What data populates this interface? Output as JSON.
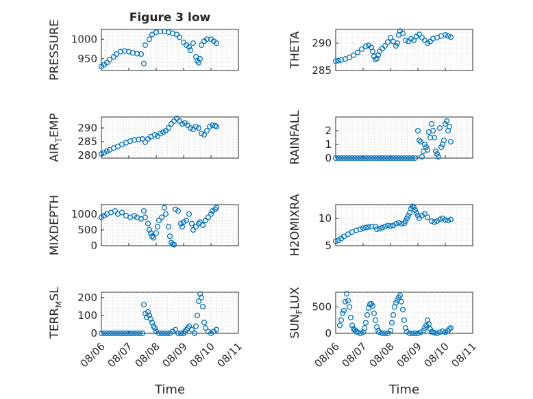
{
  "chart_data": [
    {
      "type": "scatter",
      "panel": "top-left",
      "title": "Figure 3 low",
      "ylabel": "PRESSURE",
      "xlim": [
        "2009-08-06",
        "2009-08-11"
      ],
      "ylim": [
        920,
        1025
      ],
      "yticks": [
        950,
        1000
      ],
      "grid": true,
      "minor_grid": true,
      "series": [
        {
          "x": [
            6.0,
            6.1,
            6.2,
            6.3,
            6.45,
            6.55,
            6.7,
            6.85,
            7.0,
            7.15,
            7.3,
            7.45,
            7.55,
            7.6,
            7.75,
            7.85,
            8.0,
            8.15,
            8.3,
            8.45,
            8.6,
            8.75,
            8.85,
            9.0,
            9.1,
            9.2,
            9.25,
            9.35,
            9.45,
            9.5,
            9.55,
            9.6,
            9.65,
            9.75,
            9.85,
            10.0,
            10.1,
            10.2
          ],
          "y": [
            930,
            935,
            940,
            948,
            955,
            962,
            968,
            970,
            968,
            965,
            963,
            962,
            938,
            985,
            1000,
            1012,
            1018,
            1020,
            1020,
            1018,
            1015,
            1012,
            1005,
            992,
            985,
            980,
            972,
            990,
            955,
            945,
            940,
            950,
            985,
            995,
            1000,
            1000,
            995,
            990
          ]
        }
      ]
    },
    {
      "type": "scatter",
      "panel": "top-right",
      "ylabel": "THETA",
      "xlim": [
        "2009-08-06",
        "2009-08-11"
      ],
      "ylim": [
        285,
        292.5
      ],
      "yticks": [
        285,
        290
      ],
      "grid": true,
      "minor_grid": true,
      "series": [
        {
          "x": [
            6.0,
            6.1,
            6.2,
            6.35,
            6.5,
            6.65,
            6.8,
            6.95,
            7.1,
            7.2,
            7.3,
            7.35,
            7.4,
            7.45,
            7.5,
            7.55,
            7.6,
            7.7,
            7.8,
            7.9,
            8.0,
            8.1,
            8.2,
            8.25,
            8.3,
            8.35,
            8.45,
            8.55,
            8.65,
            8.75,
            8.85,
            8.95,
            9.05,
            9.15,
            9.25,
            9.35,
            9.45,
            9.55,
            9.7,
            9.85,
            10.0,
            10.1,
            10.2
          ],
          "y": [
            286.7,
            286.8,
            286.9,
            287.1,
            287.4,
            287.8,
            288.3,
            288.9,
            289.4,
            289.6,
            289.2,
            288.5,
            287.6,
            287.0,
            287.2,
            287.8,
            288.5,
            289.0,
            289.5,
            290.2,
            291.0,
            290.3,
            289.5,
            290.0,
            291.5,
            292.2,
            291.8,
            290.5,
            290.3,
            290.8,
            290.5,
            291.2,
            291.6,
            291.0,
            290.5,
            290.0,
            290.3,
            290.8,
            291.0,
            291.3,
            291.5,
            291.3,
            291.1
          ]
        }
      ]
    },
    {
      "type": "scatter",
      "panel": "row2-left",
      "ylabel": "AIR_TEMP",
      "xlim": [
        "2009-08-06",
        "2009-08-11"
      ],
      "ylim": [
        279,
        294
      ],
      "yticks": [
        280,
        285,
        290
      ],
      "grid": true,
      "minor_grid": true,
      "series": [
        {
          "x": [
            6.0,
            6.1,
            6.2,
            6.3,
            6.45,
            6.6,
            6.75,
            6.9,
            7.05,
            7.2,
            7.35,
            7.5,
            7.6,
            7.7,
            7.8,
            7.95,
            8.05,
            8.15,
            8.25,
            8.35,
            8.45,
            8.55,
            8.65,
            8.75,
            8.85,
            8.95,
            9.05,
            9.15,
            9.25,
            9.35,
            9.45,
            9.55,
            9.65,
            9.75,
            9.85,
            9.95,
            10.05,
            10.15,
            10.2
          ],
          "y": [
            280.5,
            281.0,
            281.5,
            282.0,
            282.7,
            283.3,
            284.0,
            284.6,
            285.2,
            285.6,
            285.8,
            286.0,
            284.8,
            286.0,
            286.8,
            287.5,
            287.0,
            288.0,
            288.5,
            289.0,
            290.0,
            291.5,
            292.5,
            293.5,
            292.5,
            291.5,
            291.8,
            291.0,
            290.0,
            289.5,
            290.5,
            290.0,
            288.0,
            287.5,
            289.0,
            290.5,
            291.0,
            290.8,
            290.5
          ]
        }
      ]
    },
    {
      "type": "scatter",
      "panel": "row2-right",
      "ylabel": "RAINFALL",
      "xlim": [
        "2009-08-06",
        "2009-08-11"
      ],
      "ylim": [
        0,
        3
      ],
      "yticks": [
        0,
        1,
        2
      ],
      "grid": true,
      "minor_grid": true,
      "series": [
        {
          "x": [
            6.0,
            6.1,
            6.2,
            6.3,
            6.4,
            6.5,
            6.6,
            6.7,
            6.8,
            6.9,
            7.0,
            7.1,
            7.2,
            7.3,
            7.4,
            7.5,
            7.6,
            7.7,
            7.8,
            7.9,
            8.0,
            8.1,
            8.2,
            8.3,
            8.4,
            8.5,
            8.6,
            8.7,
            8.8,
            8.9,
            9.0,
            9.05,
            9.1,
            9.15,
            9.2,
            9.25,
            9.3,
            9.35,
            9.4,
            9.45,
            9.5,
            9.55,
            9.6,
            9.65,
            9.7,
            9.75,
            9.8,
            9.85,
            9.9,
            9.95,
            10.0,
            10.05,
            10.1,
            10.15,
            10.2
          ],
          "y": [
            0,
            0,
            0,
            0,
            0,
            0,
            0,
            0,
            0,
            0,
            0,
            0,
            0,
            0,
            0,
            0,
            0,
            0,
            0,
            0,
            0,
            0,
            0,
            0,
            0,
            0,
            0,
            0,
            0,
            0,
            2.0,
            1.3,
            1.2,
            0.1,
            0.5,
            1.0,
            0.8,
            0.6,
            1.9,
            1.5,
            2.5,
            2.0,
            1.5,
            0.5,
            0.3,
            0.1,
            2.2,
            0.8,
            1.0,
            1.3,
            2.5,
            2.7,
            2.0,
            2.3,
            1.2
          ]
        }
      ]
    },
    {
      "type": "scatter",
      "panel": "row3-left",
      "ylabel": "MIXDEPTH",
      "xlim": [
        "2009-08-06",
        "2009-08-11"
      ],
      "ylim": [
        0,
        1300
      ],
      "yticks": [
        0,
        500,
        1000
      ],
      "grid": true,
      "minor_grid": true,
      "series": [
        {
          "x": [
            6.0,
            6.1,
            6.2,
            6.35,
            6.5,
            6.6,
            6.75,
            6.9,
            7.05,
            7.2,
            7.3,
            7.45,
            7.55,
            7.6,
            7.7,
            7.75,
            7.8,
            7.85,
            7.9,
            8.0,
            8.05,
            8.1,
            8.2,
            8.3,
            8.35,
            8.45,
            8.5,
            8.55,
            8.6,
            8.65,
            8.7,
            8.8,
            8.9,
            8.95,
            9.0,
            9.1,
            9.2,
            9.3,
            9.35,
            9.45,
            9.55,
            9.6,
            9.7,
            9.8,
            9.9,
            10.0,
            10.05,
            10.15,
            10.2
          ],
          "y": [
            900,
            950,
            1000,
            1050,
            1100,
            1000,
            1050,
            950,
            900,
            950,
            900,
            850,
            1100,
            900,
            700,
            500,
            400,
            300,
            250,
            400,
            600,
            800,
            900,
            1200,
            1000,
            600,
            300,
            100,
            50,
            30,
            1150,
            1100,
            700,
            600,
            750,
            800,
            1000,
            700,
            500,
            600,
            700,
            750,
            650,
            800,
            900,
            1000,
            1100,
            1150,
            1200
          ]
        }
      ]
    },
    {
      "type": "scatter",
      "panel": "row3-right",
      "ylabel": "H2OMIXRA",
      "xlim": [
        "2009-08-06",
        "2009-08-11"
      ],
      "ylim": [
        5,
        12.5
      ],
      "yticks": [
        5,
        10
      ],
      "grid": true,
      "minor_grid": true,
      "series": [
        {
          "x": [
            6.0,
            6.1,
            6.2,
            6.3,
            6.45,
            6.6,
            6.75,
            6.9,
            7.0,
            7.1,
            7.2,
            7.3,
            7.45,
            7.5,
            7.6,
            7.7,
            7.8,
            7.9,
            8.0,
            8.1,
            8.2,
            8.3,
            8.4,
            8.5,
            8.55,
            8.6,
            8.65,
            8.7,
            8.75,
            8.8,
            8.85,
            8.9,
            8.95,
            9.0,
            9.05,
            9.15,
            9.25,
            9.35,
            9.5,
            9.6,
            9.7,
            9.8,
            9.9,
            10.0,
            10.1,
            10.2
          ],
          "y": [
            5.8,
            6.0,
            6.3,
            6.7,
            7.1,
            7.5,
            7.8,
            8.0,
            8.2,
            8.3,
            8.4,
            8.5,
            8.5,
            8.0,
            8.1,
            8.3,
            8.5,
            8.7,
            8.6,
            8.7,
            9.0,
            9.2,
            9.0,
            9.1,
            9.5,
            10.0,
            10.5,
            11.0,
            11.8,
            12.2,
            12.0,
            11.5,
            11.0,
            10.5,
            10.0,
            10.5,
            10.8,
            10.2,
            9.5,
            9.3,
            9.5,
            9.8,
            10.0,
            9.7,
            9.6,
            9.8
          ]
        }
      ]
    },
    {
      "type": "scatter",
      "panel": "bottom-left",
      "ylabel": "TERR_MSL",
      "xlabel": "Time",
      "xlim": [
        "2009-08-06",
        "2009-08-11"
      ],
      "xticks": [
        "08/06",
        "08/07",
        "08/08",
        "08/09",
        "08/10",
        "08/11"
      ],
      "ylim": [
        0,
        230
      ],
      "yticks": [
        0,
        100,
        200
      ],
      "grid": true,
      "minor_grid": true,
      "series": [
        {
          "x": [
            6.0,
            6.1,
            6.2,
            6.3,
            6.4,
            6.5,
            6.6,
            6.7,
            6.8,
            6.9,
            7.0,
            7.1,
            7.2,
            7.3,
            7.4,
            7.5,
            7.55,
            7.6,
            7.65,
            7.7,
            7.75,
            7.8,
            7.85,
            7.9,
            7.95,
            8.0,
            8.1,
            8.2,
            8.3,
            8.4,
            8.5,
            8.6,
            8.7,
            8.8,
            8.9,
            9.0,
            9.05,
            9.1,
            9.15,
            9.2,
            9.3,
            9.4,
            9.45,
            9.5,
            9.55,
            9.6,
            9.65,
            9.7,
            9.75,
            9.8,
            9.9,
            10.0,
            10.1,
            10.2
          ],
          "y": [
            0,
            0,
            0,
            0,
            0,
            0,
            0,
            0,
            0,
            0,
            0,
            0,
            0,
            0,
            0,
            0,
            160,
            110,
            90,
            120,
            100,
            80,
            60,
            40,
            30,
            10,
            0,
            0,
            0,
            0,
            0,
            10,
            20,
            0,
            0,
            0,
            10,
            20,
            30,
            40,
            20,
            0,
            40,
            100,
            180,
            220,
            200,
            150,
            60,
            30,
            10,
            0,
            10,
            20
          ]
        }
      ]
    },
    {
      "type": "scatter",
      "panel": "bottom-right",
      "ylabel": "SUN_FLUX",
      "xlabel": "Time",
      "xlim": [
        "2009-08-06",
        "2009-08-11"
      ],
      "xticks": [
        "08/06",
        "08/07",
        "08/08",
        "08/09",
        "08/10",
        "08/11"
      ],
      "ylim": [
        0,
        780
      ],
      "yticks": [
        0,
        500
      ],
      "grid": true,
      "minor_grid": true,
      "series": [
        {
          "x": [
            6.15,
            6.2,
            6.25,
            6.3,
            6.35,
            6.4,
            6.45,
            6.5,
            6.55,
            6.6,
            6.65,
            6.7,
            6.75,
            6.8,
            6.9,
            7.0,
            7.05,
            7.1,
            7.15,
            7.2,
            7.25,
            7.3,
            7.35,
            7.4,
            7.45,
            7.5,
            7.55,
            7.6,
            7.7,
            7.8,
            7.9,
            8.0,
            8.05,
            8.1,
            8.15,
            8.2,
            8.25,
            8.3,
            8.35,
            8.4,
            8.45,
            8.5,
            8.55,
            8.6,
            8.7,
            8.8,
            8.9,
            9.0,
            9.1,
            9.2,
            9.25,
            9.3,
            9.35,
            9.4,
            9.45,
            9.5,
            9.55,
            9.6,
            9.7,
            9.8,
            9.9,
            10.0,
            10.1,
            10.15,
            10.2
          ],
          "y": [
            150,
            250,
            380,
            430,
            600,
            750,
            620,
            500,
            300,
            150,
            80,
            60,
            40,
            20,
            0,
            20,
            100,
            200,
            350,
            480,
            550,
            560,
            520,
            380,
            250,
            120,
            50,
            20,
            0,
            0,
            0,
            50,
            200,
            350,
            500,
            580,
            630,
            680,
            720,
            600,
            450,
            250,
            100,
            30,
            0,
            0,
            0,
            0,
            20,
            50,
            100,
            150,
            250,
            180,
            80,
            30,
            20,
            10,
            0,
            20,
            40,
            20,
            50,
            80,
            100
          ]
        }
      ]
    }
  ]
}
